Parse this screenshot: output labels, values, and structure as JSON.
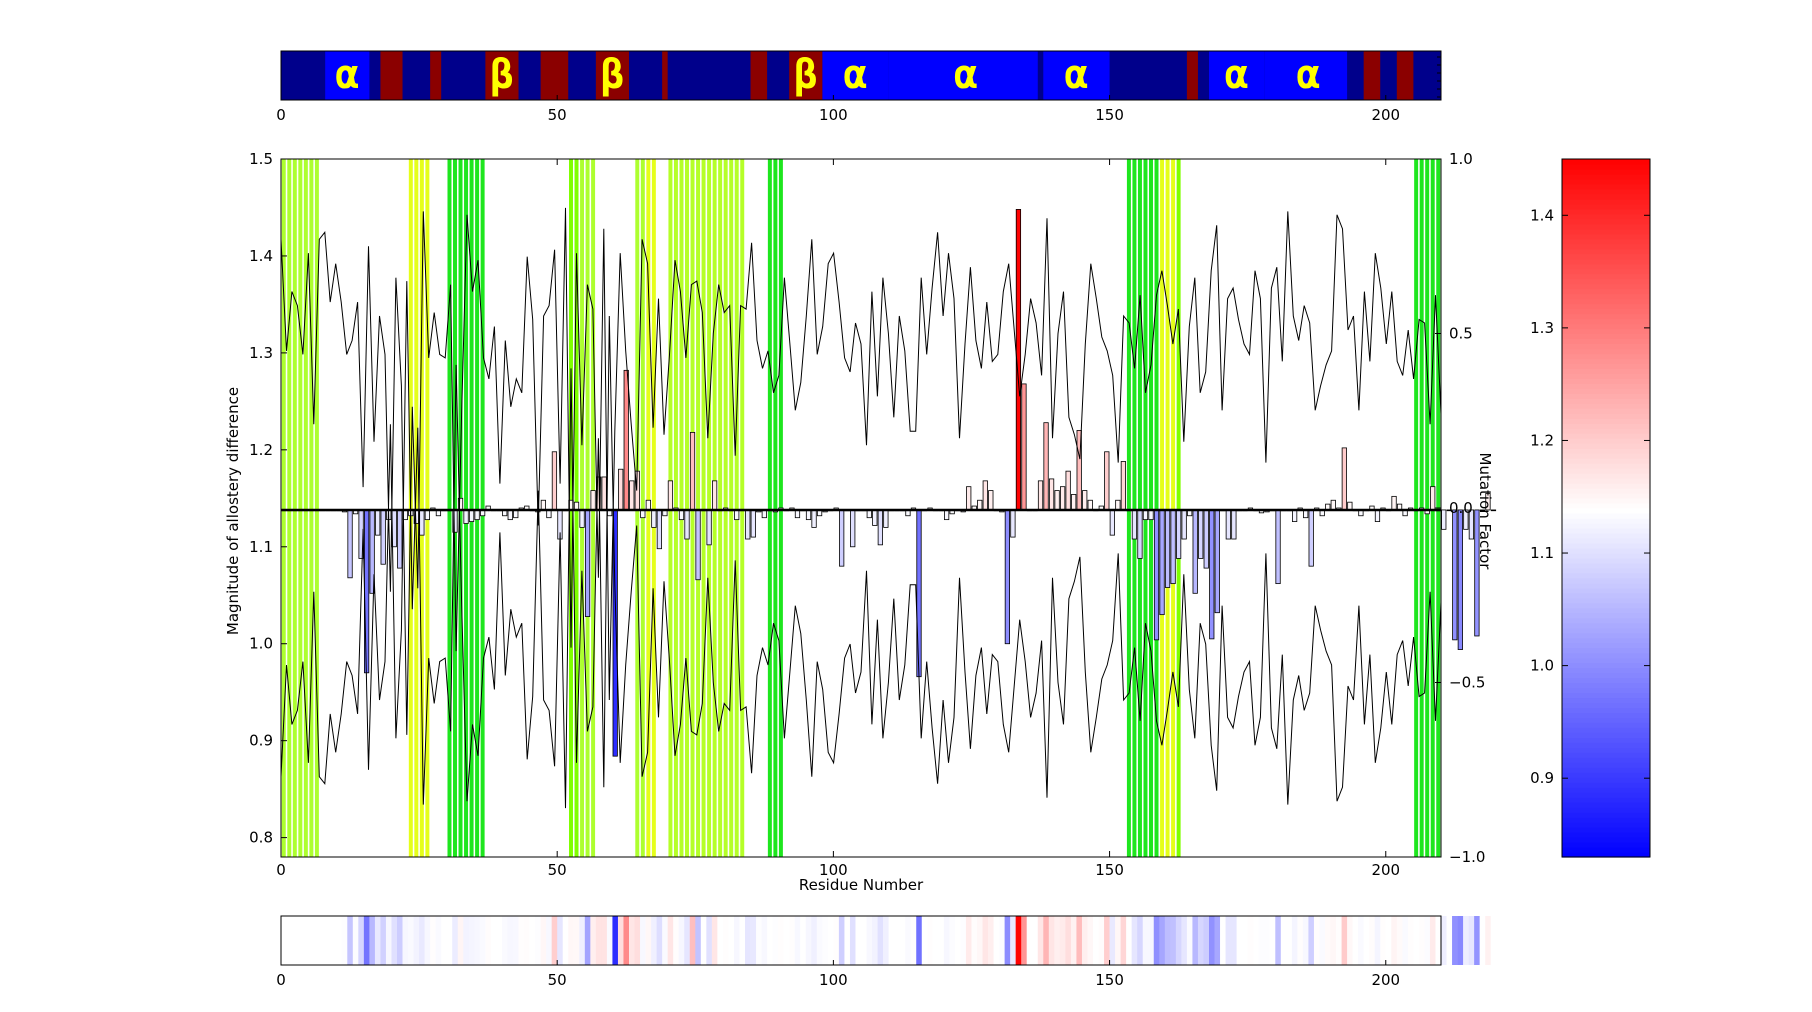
{
  "chart_data": [
    {
      "type": "heatmap",
      "role": "secondary-structure-track",
      "xlim": [
        0,
        210
      ],
      "xticks": [
        0,
        50,
        100,
        150,
        200
      ],
      "colors": {
        "background": "#00008b",
        "helix": "#0000ff",
        "strand": "#8b0000",
        "glyph": "#ffff00"
      },
      "helix_segments": [
        [
          8,
          16
        ],
        [
          98,
          110
        ],
        [
          110,
          137
        ],
        [
          138,
          150
        ],
        [
          168,
          178
        ],
        [
          178,
          193
        ]
      ],
      "strand_segments": [
        [
          18,
          22
        ],
        [
          27,
          29
        ],
        [
          37,
          43
        ],
        [
          47,
          52
        ],
        [
          57,
          63
        ],
        [
          69,
          70
        ],
        [
          85,
          88
        ],
        [
          92,
          98
        ],
        [
          164,
          166
        ],
        [
          196,
          199
        ],
        [
          202,
          205
        ]
      ],
      "glyph_labels": [
        {
          "text": "α",
          "x": 12
        },
        {
          "text": "β",
          "x": 40
        },
        {
          "text": "β",
          "x": 60
        },
        {
          "text": "β",
          "x": 95
        },
        {
          "text": "α",
          "x": 104
        },
        {
          "text": "α",
          "x": 124
        },
        {
          "text": "α",
          "x": 144
        },
        {
          "text": "α",
          "x": 173
        },
        {
          "text": "α",
          "x": 186
        }
      ]
    },
    {
      "type": "bar",
      "role": "main",
      "xlabel": "Residue Number",
      "ylabel": "Magnitude of allostery difference",
      "ylabel_right": "Mutation Factor",
      "xlim": [
        0,
        210
      ],
      "ylim": [
        0.78,
        1.5
      ],
      "ylim_right": [
        -1.0,
        1.0
      ],
      "xticks": [
        0,
        50,
        100,
        150,
        200
      ],
      "yticks": [
        0.8,
        0.9,
        1.0,
        1.1,
        1.2,
        1.3,
        1.4,
        1.5
      ],
      "yticks_right": [
        "1.0",
        "0.5",
        "0.0",
        "−0.5",
        "−1.0"
      ],
      "baseline": 1.138,
      "grid": false,
      "residue_values": [
        1.138,
        1.138,
        1.138,
        1.138,
        1.138,
        1.138,
        1.138,
        1.138,
        1.138,
        1.138,
        1.138,
        1.136,
        1.068,
        1.134,
        1.088,
        0.97,
        1.052,
        1.112,
        1.082,
        1.128,
        1.1,
        1.078,
        1.128,
        1.132,
        1.124,
        1.112,
        1.128,
        1.14,
        1.132,
        1.138,
        1.138,
        1.115,
        1.15,
        1.124,
        1.126,
        1.128,
        1.132,
        1.142,
        1.138,
        1.138,
        1.132,
        1.128,
        1.13,
        1.14,
        1.142,
        1.138,
        1.136,
        1.148,
        1.13,
        1.198,
        1.108,
        1.138,
        1.148,
        1.146,
        1.12,
        1.028,
        1.158,
        1.172,
        1.172,
        1.132,
        0.884,
        1.18,
        1.282,
        1.168,
        1.178,
        1.13,
        1.148,
        1.12,
        1.098,
        1.132,
        1.168,
        1.14,
        1.128,
        1.108,
        1.218,
        1.066,
        1.138,
        1.102,
        1.168,
        1.138,
        1.14,
        1.138,
        1.128,
        1.138,
        1.108,
        1.11,
        1.136,
        1.13,
        1.138,
        1.136,
        1.14,
        1.138,
        1.14,
        1.13,
        1.138,
        1.128,
        1.12,
        1.132,
        1.136,
        1.138,
        1.14,
        1.08,
        1.138,
        1.1,
        1.138,
        1.138,
        1.13,
        1.122,
        1.102,
        1.12,
        1.138,
        1.138,
        1.138,
        1.132,
        1.14,
        0.966,
        1.138,
        1.14,
        1.138,
        1.138,
        1.128,
        1.134,
        1.138,
        1.136,
        1.162,
        1.142,
        1.148,
        1.168,
        1.158,
        1.138,
        1.136,
        1.0,
        1.11,
        1.448,
        1.268,
        1.138,
        1.138,
        1.168,
        1.228,
        1.17,
        1.158,
        1.162,
        1.178,
        1.154,
        1.22,
        1.158,
        1.148,
        1.138,
        1.142,
        1.198,
        1.112,
        1.148,
        1.188,
        1.138,
        1.108,
        1.088,
        1.128,
        1.128,
        1.004,
        1.03,
        1.058,
        1.062,
        1.088,
        1.108,
        1.132,
        1.052,
        1.088,
        1.078,
        1.005,
        1.032,
        1.138,
        1.108,
        1.108,
        1.138,
        1.138,
        1.14,
        1.138,
        1.135,
        1.136,
        1.138,
        1.062,
        1.138,
        1.138,
        1.126,
        1.14,
        1.13,
        1.08,
        1.14,
        1.132,
        1.144,
        1.148,
        1.14,
        1.202,
        1.146,
        1.138,
        1.132,
        1.138,
        1.142,
        1.126,
        1.14,
        1.138,
        1.152,
        1.144,
        1.132,
        1.14,
        1.138,
        1.14,
        1.134,
        1.162,
        1.138,
        1.118,
        1.138,
        1.004,
        0.994,
        1.118,
        1.108,
        1.008,
        1.138,
        1.155,
        1.138
      ],
      "line_series": [
        0.77,
        0.45,
        0.62,
        0.58,
        0.44,
        0.73,
        0.24,
        0.77,
        0.79,
        0.59,
        0.7,
        0.59,
        0.44,
        0.48,
        0.59,
        0.06,
        0.75,
        0.19,
        0.55,
        0.44,
        -0.24,
        0.66,
        0.35,
        -0.65,
        0.29,
        -0.23,
        0.85,
        0.43,
        0.56,
        0.44,
        0.43,
        0.64,
        -0.41,
        0.27,
        0.84,
        0.62,
        0.71,
        0.43,
        0.37,
        0.52,
        0.07,
        0.48,
        0.29,
        0.37,
        0.33,
        0.72,
        0.54,
        -0.05,
        0.55,
        0.58,
        0.74,
        0.07,
        0.86,
        -0.4,
        0.73,
        0.18,
        0.64,
        0.57,
        -0.2,
        0.8,
        -0.55,
        0.22,
        0.73,
        0.45,
        0.24,
        0.05,
        0.77,
        0.7,
        0.23,
        0.6,
        0.21,
        0.44,
        0.71,
        0.62,
        0.43,
        0.64,
        0.65,
        0.56,
        0.2,
        0.5,
        0.64,
        0.56,
        0.58,
        0.15,
        0.58,
        0.57,
        0.76,
        0.48,
        0.4,
        0.45,
        0.33,
        0.38,
        0.66,
        0.47,
        0.28,
        0.36,
        0.55,
        0.77,
        0.44,
        0.52,
        0.7,
        0.73,
        0.59,
        0.43,
        0.39,
        0.53,
        0.47,
        0.18,
        0.62,
        0.32,
        0.66,
        0.5,
        0.26,
        0.55,
        0.45,
        0.22,
        0.22,
        0.66,
        0.44,
        0.63,
        0.79,
        0.55,
        0.73,
        0.6,
        0.2,
        0.47,
        0.69,
        0.48,
        0.4,
        0.59,
        0.42,
        0.44,
        0.62,
        0.7,
        0.51,
        0.32,
        0.44,
        0.6,
        0.53,
        0.38,
        0.83,
        0.2,
        0.5,
        0.62,
        0.26,
        0.21,
        0.14,
        0.47,
        0.7,
        0.6,
        0.49,
        0.45,
        0.38,
        0.13,
        0.55,
        0.53,
        0.4,
        0.61,
        0.33,
        0.41,
        0.61,
        0.68,
        0.58,
        0.47,
        0.57,
        0.19,
        0.52,
        0.66,
        0.33,
        0.39,
        0.68,
        0.81,
        0.28,
        0.6,
        0.63,
        0.54,
        0.47,
        0.44,
        0.68,
        0.6,
        0.13,
        0.63,
        0.69,
        0.42,
        0.85,
        0.55,
        0.48,
        0.58,
        0.53,
        0.28,
        0.35,
        0.41,
        0.45,
        0.84,
        0.8,
        0.51,
        0.55,
        0.28,
        0.62,
        0.42,
        0.73,
        0.63,
        0.47,
        0.62,
        0.42,
        0.38,
        0.51,
        0.37,
        0.54,
        0.53,
        0.24,
        0.61,
        0.27
      ],
      "highlight_bands": [
        {
          "start": 0,
          "end": 7,
          "color": "#adff2f"
        },
        {
          "start": 23,
          "end": 27,
          "color": "#e5ff1a"
        },
        {
          "start": 30,
          "end": 37,
          "color": "#1ee61e"
        },
        {
          "start": 52,
          "end": 54,
          "color": "#7fff00"
        },
        {
          "start": 54,
          "end": 57,
          "color": "#adff2f"
        },
        {
          "start": 64,
          "end": 66,
          "color": "#adff2f"
        },
        {
          "start": 66,
          "end": 68,
          "color": "#e5ff1a"
        },
        {
          "start": 70,
          "end": 84,
          "color": "#b5ff28"
        },
        {
          "start": 88,
          "end": 91,
          "color": "#1ee61e"
        },
        {
          "start": 153,
          "end": 159,
          "color": "#1ee61e"
        },
        {
          "start": 159,
          "end": 162,
          "color": "#e5ff1a"
        },
        {
          "start": 162,
          "end": 163,
          "color": "#7fff00"
        },
        {
          "start": 205,
          "end": 210,
          "color": "#1ee61e"
        }
      ]
    },
    {
      "type": "heatmap",
      "role": "colorbar",
      "range": [
        0.83,
        1.45
      ],
      "ticks": [
        "0.9",
        "1.0",
        "1.1",
        "1.2",
        "1.3",
        "1.4"
      ],
      "cmap": "bwr",
      "center": 1.138
    },
    {
      "type": "heatmap",
      "role": "residue-color-strip",
      "xlim": [
        0,
        210
      ],
      "xticks": [
        0,
        50,
        100,
        150,
        200
      ],
      "source": "residue_values"
    }
  ]
}
